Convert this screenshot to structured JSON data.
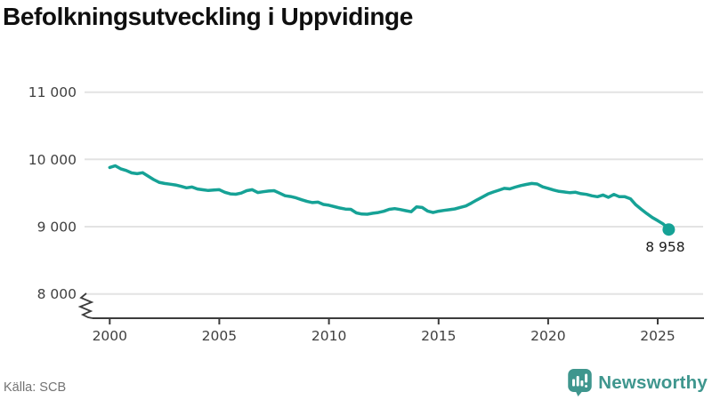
{
  "title": "Befolkningsutveckling i Uppvidinge",
  "source": "Källa: SCB",
  "branding": {
    "name": "Newsworthy",
    "icon": "newsworthy-speech-bubble-bar-chart-icon"
  },
  "colors": {
    "line": "#16a296",
    "grid": "#e3e3e3",
    "axis": "#3c3c3c",
    "tick_label": "#404040",
    "annotation": "#1a1a1a",
    "title": "#0f0f0f",
    "source": "#737373",
    "brand": "#3f968e"
  },
  "chart_data": {
    "type": "line",
    "title": "Befolkningsutveckling i Uppvidinge",
    "xlabel": "",
    "ylabel": "",
    "grid": true,
    "legend": "none",
    "axis_break_below_ymin": true,
    "ylim": [
      8000,
      11000
    ],
    "xlim": [
      2000,
      2025.5
    ],
    "y_ticks": {
      "labels": [
        "11 000",
        "10 000",
        "9 000",
        "8 000"
      ],
      "values": [
        11000,
        10000,
        9000,
        8000
      ]
    },
    "x_ticks": {
      "labels": [
        "2000",
        "2005",
        "2010",
        "2015",
        "2020",
        "2025"
      ],
      "values": [
        2000,
        2005,
        2010,
        2015,
        2020,
        2025
      ]
    },
    "end_label": "8 958",
    "x": [
      2000,
      2000.25,
      2000.5,
      2000.75,
      2001,
      2001.25,
      2001.5,
      2001.75,
      2002,
      2002.25,
      2002.5,
      2002.75,
      2003,
      2003.25,
      2003.5,
      2003.75,
      2004,
      2004.25,
      2004.5,
      2004.75,
      2005,
      2005.25,
      2005.5,
      2005.75,
      2006,
      2006.25,
      2006.5,
      2006.75,
      2007,
      2007.25,
      2007.5,
      2007.75,
      2008,
      2008.25,
      2008.5,
      2008.75,
      2009,
      2009.25,
      2009.5,
      2009.75,
      2010,
      2010.25,
      2010.5,
      2010.75,
      2011,
      2011.25,
      2011.5,
      2011.75,
      2012,
      2012.25,
      2012.5,
      2012.75,
      2013,
      2013.25,
      2013.5,
      2013.75,
      2014,
      2014.25,
      2014.5,
      2014.75,
      2015,
      2015.25,
      2015.5,
      2015.75,
      2016,
      2016.25,
      2016.5,
      2016.75,
      2017,
      2017.25,
      2017.5,
      2017.75,
      2018,
      2018.25,
      2018.5,
      2018.75,
      2019,
      2019.25,
      2019.5,
      2019.75,
      2020,
      2020.25,
      2020.5,
      2020.75,
      2021,
      2021.25,
      2021.5,
      2021.75,
      2022,
      2022.25,
      2022.5,
      2022.75,
      2023,
      2023.25,
      2023.5,
      2023.75,
      2024,
      2024.25,
      2024.5,
      2024.75,
      2025,
      2025.25,
      2025.5
    ],
    "values": [
      9880,
      9905,
      9860,
      9835,
      9800,
      9788,
      9802,
      9752,
      9700,
      9660,
      9642,
      9632,
      9620,
      9600,
      9578,
      9590,
      9560,
      9548,
      9538,
      9545,
      9550,
      9512,
      9488,
      9483,
      9500,
      9535,
      9550,
      9508,
      9520,
      9530,
      9535,
      9498,
      9460,
      9448,
      9428,
      9400,
      9375,
      9358,
      9365,
      9330,
      9318,
      9298,
      9278,
      9262,
      9258,
      9205,
      9188,
      9185,
      9200,
      9210,
      9228,
      9258,
      9268,
      9255,
      9238,
      9222,
      9295,
      9286,
      9233,
      9210,
      9230,
      9242,
      9252,
      9264,
      9287,
      9308,
      9352,
      9398,
      9440,
      9485,
      9516,
      9542,
      9570,
      9562,
      9588,
      9610,
      9628,
      9642,
      9635,
      9592,
      9570,
      9545,
      9525,
      9515,
      9505,
      9512,
      9490,
      9480,
      9458,
      9445,
      9470,
      9436,
      9480,
      9445,
      9446,
      9415,
      9325,
      9258,
      9195,
      9136,
      9090,
      9040,
      8958
    ]
  }
}
